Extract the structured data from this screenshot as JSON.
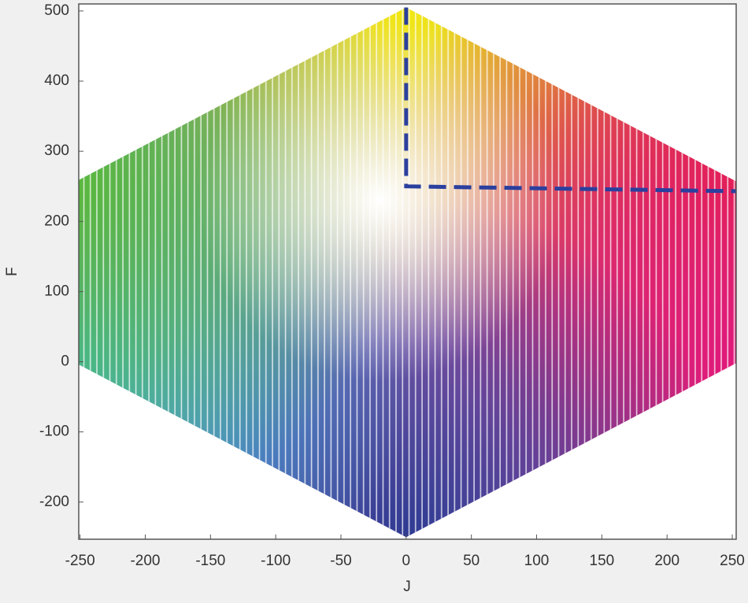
{
  "chart_data": {
    "type": "scatter",
    "xlabel": "J",
    "ylabel": "F",
    "xlim": [
      -251,
      253
    ],
    "ylim": [
      -253,
      510
    ],
    "xticks": [
      -250,
      -200,
      -150,
      -100,
      -50,
      0,
      50,
      100,
      150,
      200,
      250
    ],
    "yticks": [
      -200,
      -100,
      0,
      100,
      200,
      300,
      400,
      500
    ],
    "gamut": {
      "x": [
        0,
        255,
        255,
        0,
        -255,
        -255
      ],
      "y": [
        505,
        255,
        0,
        -250,
        0,
        255
      ],
      "colors": [
        "#f2ea10",
        "#e8262a",
        "#e0187a",
        "#2e3a92",
        "#2fb7e6",
        "#5ab83a"
      ],
      "center": {
        "x": -20,
        "y": 230,
        "color": "#ffffff"
      }
    },
    "series": [
      {
        "color": "#2b3f9e",
        "x": [
          0,
          0,
          255
        ],
        "y": [
          505,
          250,
          243
        ]
      }
    ]
  }
}
